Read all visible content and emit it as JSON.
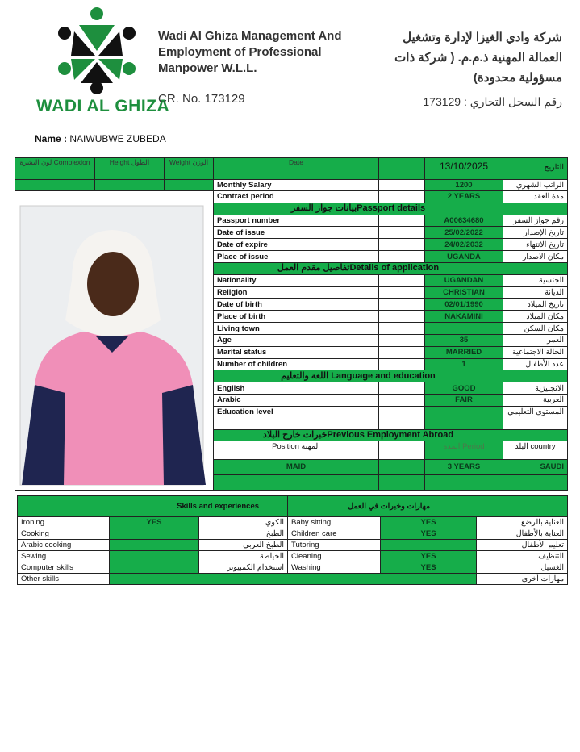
{
  "header": {
    "logo_text": "WADI AL GHIZA",
    "company_en": "Wadi Al Ghiza Management And Employment of Professional Manpower W.L.L.",
    "cr_en": "CR. No. 173129",
    "company_ar": "شركة وادي الغيزا لإدارة وتشغيل العمالة المهنية ذ.م.م. ( شركة ذات مسؤولية محدودة)",
    "cr_ar": "رقم السجل التجاري : 173129",
    "colors": {
      "green": "#16ad4a",
      "logo_green": "#1e8f3e"
    }
  },
  "name": {
    "label": "Name :",
    "value": "NAIWUBWE ZUBEDA"
  },
  "top_header": {
    "complexion": "لون البشرة Complexion",
    "height": "Height  الطول",
    "weight": "Weight الوزن",
    "date_label": "Date",
    "date_value": "13/10/2025",
    "date_ar": "التاريخ"
  },
  "rows": [
    {
      "type": "row",
      "en": "Monthly Salary",
      "value": "1200",
      "ar": "الراتب الشهري"
    },
    {
      "type": "row",
      "en": "Contract period",
      "value": "2 YEARS",
      "ar": "مدة العقد"
    },
    {
      "type": "section",
      "title": "بيانات جواز السفرPassport details"
    },
    {
      "type": "row",
      "en": "Passport number",
      "value": "A00634680",
      "ar": "رقم جواز السفر"
    },
    {
      "type": "row",
      "en": "Date of issue",
      "value": "25/02/2022",
      "ar": "تاريخ الإصدار"
    },
    {
      "type": "row",
      "en": "Date of expire",
      "value": "24/02/2032",
      "ar": "تاريخ الانتهاء"
    },
    {
      "type": "row",
      "en": "Place of issue",
      "value": "UGANDA",
      "ar": "مكان الاصدار"
    },
    {
      "type": "section",
      "title": "تفاصيل مقدم العملDetails of application"
    },
    {
      "type": "row",
      "en": "Nationality",
      "value": "UGANDAN",
      "ar": "الجنسية"
    },
    {
      "type": "row",
      "en": "Religion",
      "value": "CHRISTIAN",
      "ar": "الديانة"
    },
    {
      "type": "row",
      "en": "Date of birth",
      "value": "02/01/1990",
      "ar": "تاريخ الميلاد"
    },
    {
      "type": "row",
      "en": "Place of birth",
      "value": "NAKAMINI",
      "ar": "مكان الميلاد"
    },
    {
      "type": "row",
      "en": "Living town",
      "value": "",
      "ar": "مكان السكن"
    },
    {
      "type": "row",
      "en": "Age",
      "value": "35",
      "ar": "العمر"
    },
    {
      "type": "row",
      "en": "Marital status",
      "value": "MARRIED",
      "ar": "الحالة الاجتماعية"
    },
    {
      "type": "row",
      "en": "Number of children",
      "value": "1",
      "ar": "عدد الأطفال"
    },
    {
      "type": "section",
      "title": "اللغة والتعليم Language and education"
    },
    {
      "type": "row",
      "en": "English",
      "value": "GOOD",
      "ar": "الانجليزية"
    },
    {
      "type": "row",
      "en": "Arabic",
      "value": "FAIR",
      "ar": "العربية"
    },
    {
      "type": "row",
      "en": "Education level",
      "value": "",
      "ar": "المستوى التعليمي",
      "tall": true
    },
    {
      "type": "section",
      "title": "خبرات خارج البلادPrevious Employment Abroad"
    }
  ],
  "employment": {
    "position_label": "Position      المهنة",
    "period_label": "المدة     Period",
    "country_label": "البلد     country",
    "entries": [
      {
        "position": "MAID",
        "period": "3 YEARS",
        "country": "SAUDI"
      }
    ]
  },
  "skills": {
    "title_en": "Skills and experiences",
    "title_ar": "مهارات وخبرات في العمل",
    "rows": [
      {
        "en1": "Ironing",
        "v1": "YES",
        "ar1": "الكوي",
        "en2": "Baby sitting",
        "v2": "YES",
        "ar2": "العناية بالرضع"
      },
      {
        "en1": "Cooking",
        "v1": "",
        "ar1": "الطبخ",
        "en2": "Children care",
        "v2": "YES",
        "ar2": "العناية بالأطفال"
      },
      {
        "en1": "Arabic cooking",
        "v1": "",
        "ar1": "الطبخ العربي",
        "en2": "Tutoring",
        "v2": "",
        "ar2": "تعليم الأطفال"
      },
      {
        "en1": "Sewing",
        "v1": "",
        "ar1": "الخياطة",
        "en2": "Cleaning",
        "v2": "YES",
        "ar2": "التنظيف"
      },
      {
        "en1": "Computer skills",
        "v1": "",
        "ar1": "استخدام الكمبيوتر",
        "en2": "Washing",
        "v2": "YES",
        "ar2": "الغسيل"
      }
    ],
    "other_en": "Other skills",
    "other_ar": "مهارات أخرى"
  }
}
